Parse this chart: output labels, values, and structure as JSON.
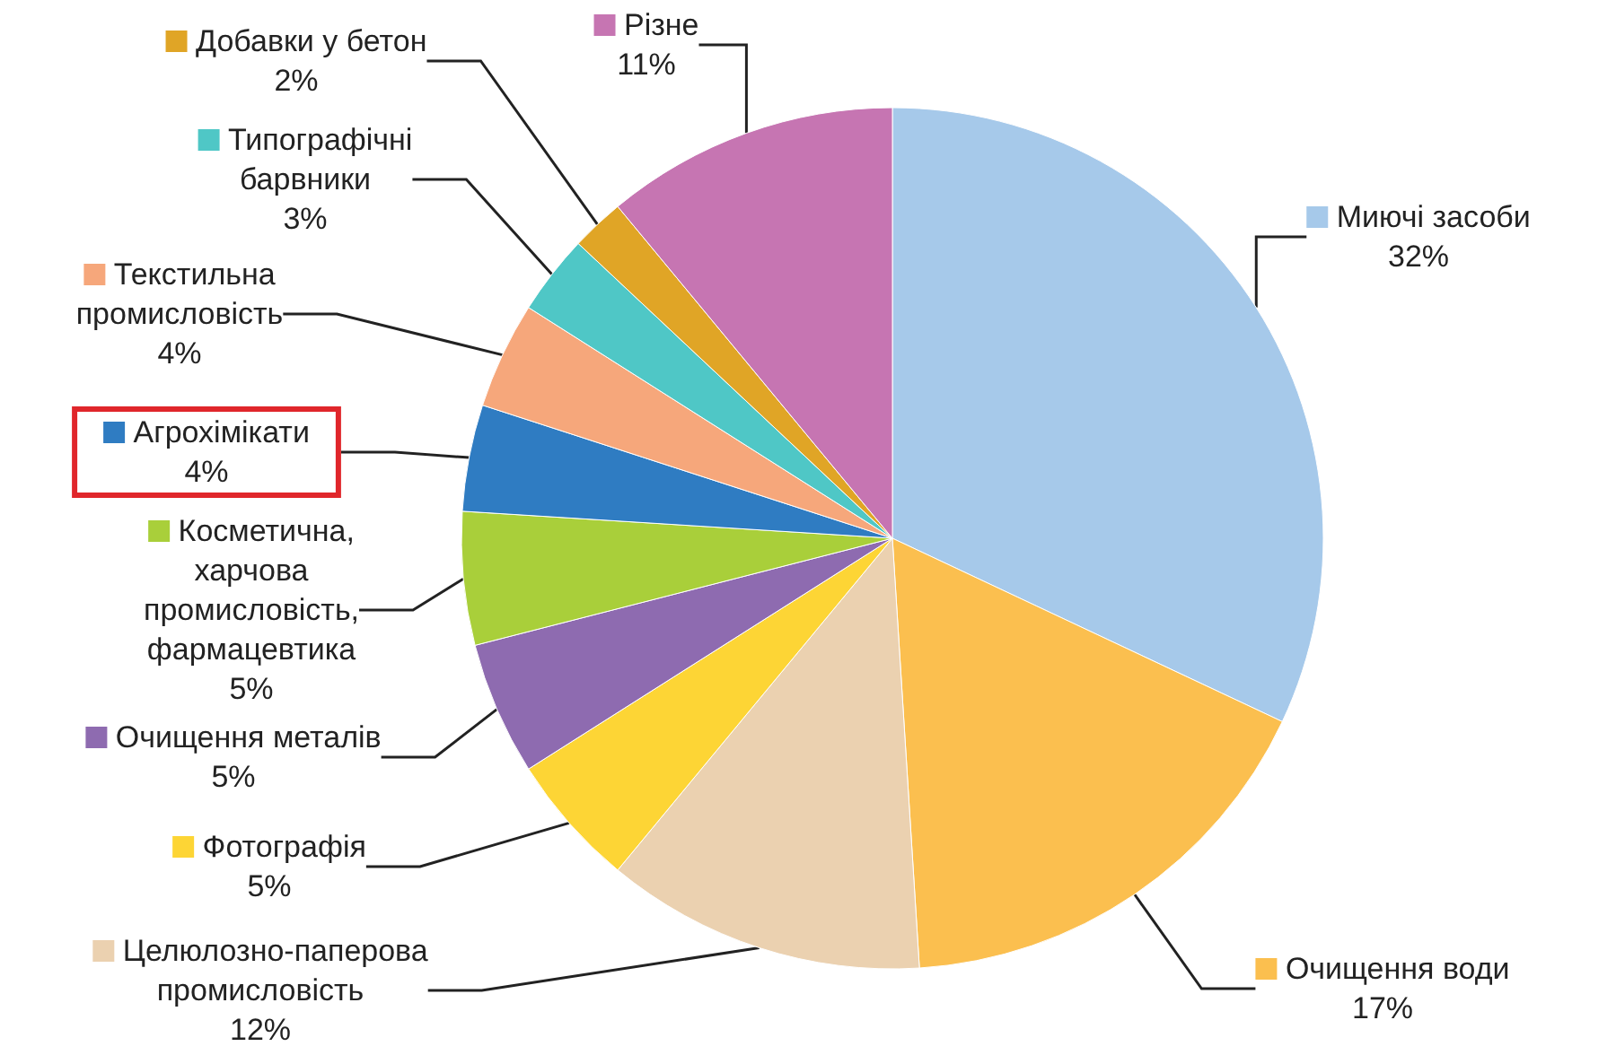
{
  "chart_data": {
    "type": "pie",
    "categories": [
      "Миючі засоби",
      "Очищення води",
      "Целюлозно-паперова промисловість",
      "Фотографія",
      "Очищення металів",
      "Косметична, харчова промисловість, фармацевтика",
      "Агрохімікати",
      "Текстильна промисловість",
      "Типографічні барвники",
      "Добавки у бетон",
      "Різне"
    ],
    "values": [
      32,
      17,
      12,
      5,
      5,
      5,
      4,
      4,
      3,
      2,
      11
    ],
    "value_labels": [
      "32%",
      "17%",
      "12%",
      "5%",
      "5%",
      "5%",
      "4%",
      "4%",
      "3%",
      "2%",
      "11%"
    ],
    "legend": "left",
    "colors": [
      "#a6c9ea",
      "#fbbf4f",
      "#ebd1b0",
      "#fdd535",
      "#8e6bb0",
      "#a9cf3a",
      "#2f7cc2",
      "#f6a77b",
      "#4fc7c6",
      "#e0a526",
      "#c675b2"
    ]
  }
}
